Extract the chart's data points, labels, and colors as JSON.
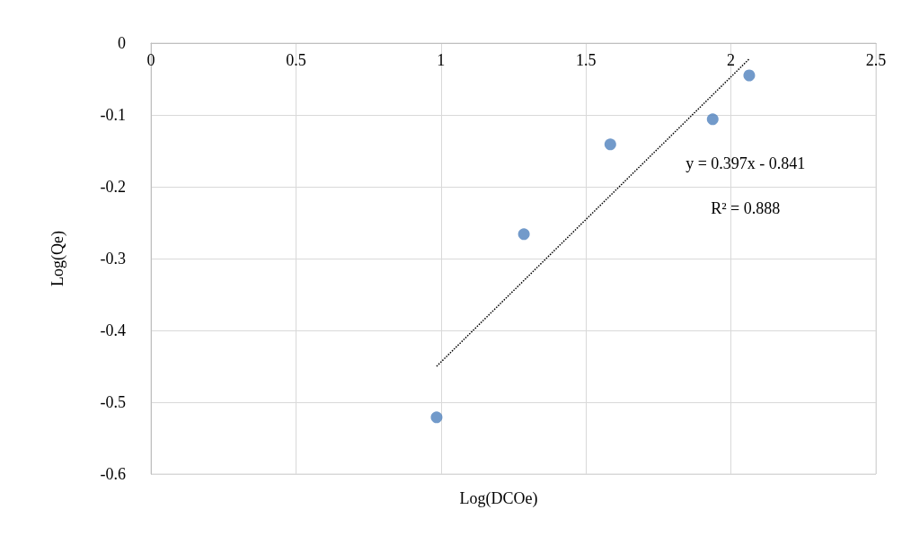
{
  "chart_data": {
    "type": "scatter",
    "xlabel": "Log(DCOe)",
    "ylabel": "Log(Qe)",
    "series": [
      {
        "color": "#4f81bd",
        "marker": "circle",
        "x": [
          0.985,
          1.286,
          1.584,
          1.937,
          2.063
        ],
        "values": [
          -0.521,
          -0.266,
          -0.141,
          -0.106,
          -0.045
        ]
      },
      {
        "type": "line",
        "color": "#000000",
        "x": [
          0.985,
          2.063
        ],
        "values": [
          -0.45,
          -0.022
        ],
        "line_style": "dotted",
        "marker": "none"
      }
    ],
    "xlim": [
      0,
      2.5
    ],
    "xticks": [
      0,
      0.5,
      1,
      1.5,
      2,
      2.5
    ],
    "ylim": [
      -0.6,
      0
    ],
    "yticks": [
      -0.6,
      -0.5,
      -0.4,
      -0.3,
      -0.2,
      -0.1,
      0
    ],
    "grid": true,
    "annotations": [
      "y = 0.397x - 0.841",
      "R² = 0.888"
    ]
  }
}
